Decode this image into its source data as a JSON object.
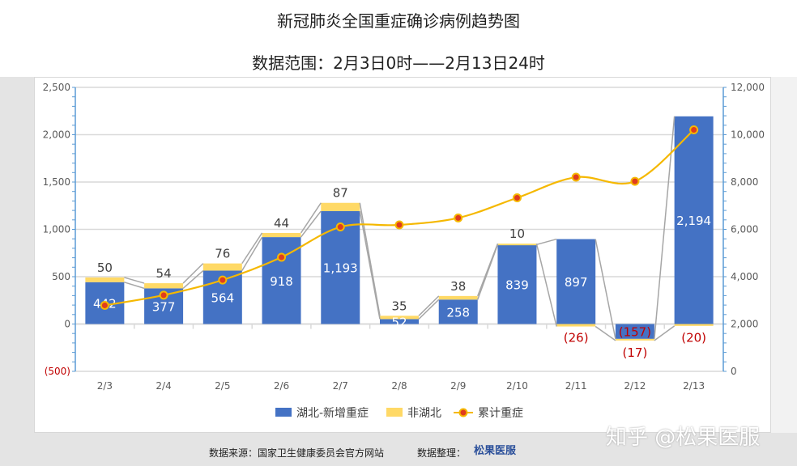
{
  "chart_data": {
    "type": "bar",
    "title": "新冠肺炎全国重症确诊病例趋势图",
    "subtitle": "数据范围：2月3日0时——2月13日24时",
    "categories": [
      "2/3",
      "2/4",
      "2/5",
      "2/6",
      "2/7",
      "2/8",
      "2/9",
      "2/10",
      "2/11",
      "2/12",
      "2/13"
    ],
    "series": [
      {
        "name": "湖北-新增重症",
        "type": "stacked-bar",
        "axis": "left",
        "color": "#4472c4",
        "values": [
          442,
          377,
          564,
          918,
          1193,
          52,
          258,
          839,
          897,
          -157,
          2194
        ],
        "labels": [
          "442",
          "377",
          "564",
          "918",
          "1,193",
          "52",
          "258",
          "839",
          "897",
          "(157)",
          "2,194"
        ]
      },
      {
        "name": "非湖北",
        "type": "stacked-bar",
        "axis": "left",
        "color": "#ffd966",
        "values": [
          50,
          54,
          76,
          44,
          87,
          35,
          38,
          10,
          -26,
          -17,
          -20
        ],
        "labels": [
          "50",
          "54",
          "76",
          "44",
          "87",
          "35",
          "38",
          "10",
          "(26)",
          "(17)",
          "(20)"
        ]
      },
      {
        "name": "累计重症",
        "type": "line",
        "axis": "right",
        "color": "#f5b800",
        "marker": "#e03c1e",
        "values": [
          2788,
          3219,
          3859,
          4821,
          6101,
          6188,
          6484,
          7333,
          8204,
          8030,
          10204
        ]
      }
    ],
    "ylim_left": [
      -500,
      2500
    ],
    "yticks_left": [
      "(500)",
      "0",
      "500",
      "1,000",
      "1,500",
      "2,000",
      "2,500"
    ],
    "ylim_right": [
      0,
      12000
    ],
    "yticks_right": [
      "0",
      "2,000",
      "4,000",
      "6,000",
      "8,000",
      "10,000",
      "12,000"
    ],
    "grid": true,
    "legend": "bottom"
  },
  "footer": {
    "source": "数据来源：国家卫生健康委员会官方网站",
    "organizer": "数据整理：",
    "logo": "松果医服",
    "watermark": "知乎 @松果医服"
  }
}
